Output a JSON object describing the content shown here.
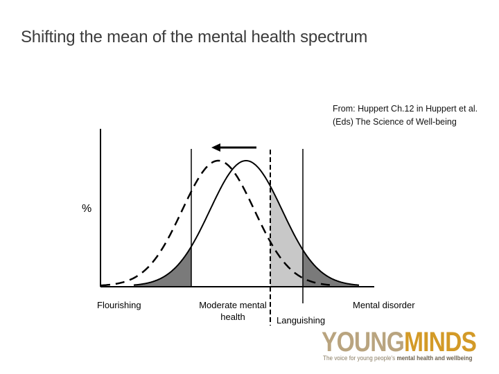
{
  "title": "Shifting the mean of the mental health spectrum",
  "source": {
    "line1": "From: Huppert Ch.12 in Huppert et al.",
    "line2": "(Eds) The Science of Well-being"
  },
  "diagram": {
    "y_axis_label": "%",
    "labels": {
      "flourishing": "Flourishing",
      "moderate_line1": "Moderate mental",
      "moderate_line2": "health",
      "languishing": "Languishing",
      "mental_disorder": "Mental disorder"
    },
    "colors": {
      "tail_fill": "#7a7a7a",
      "languishing_fill": "#c8c8c8",
      "curve": "#000000"
    },
    "shift_direction": "left"
  },
  "logo": {
    "word1": "YOUNG",
    "word2": "MINDS",
    "tagline_prefix": "The voice for young people's",
    "tagline_bold": "mental health and wellbeing"
  }
}
